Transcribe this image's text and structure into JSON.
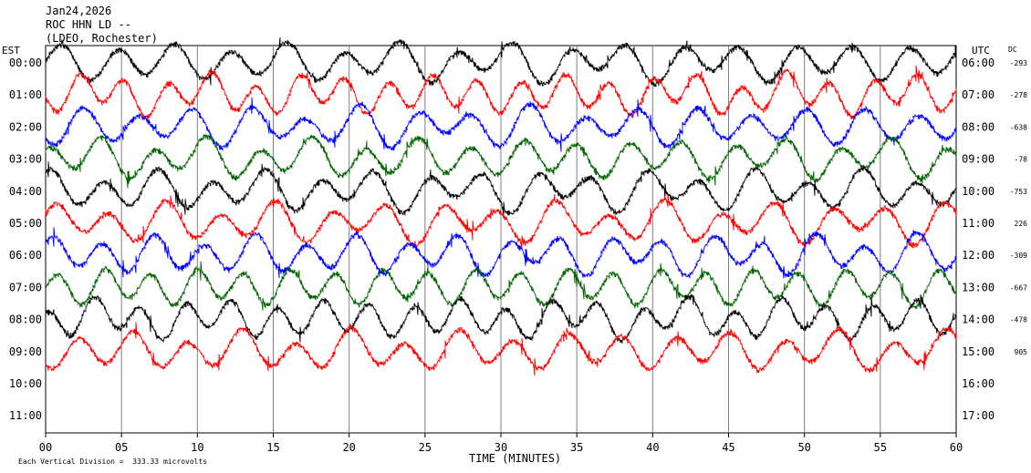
{
  "header": {
    "date": "Jan24,2026",
    "station_line": "ROC HHN LD --",
    "location_line": "(LDEO, Rochester)"
  },
  "axes": {
    "left_timezone": "EST",
    "right_timezone": "UTC",
    "dc_label": "DC",
    "x_title": "TIME (MINUTES)",
    "footer_note": "Each Vertical Division =  333.33 microvolts"
  },
  "chart_data": {
    "type": "line",
    "title": "Jan24,2026",
    "xlabel": "TIME (MINUTES)",
    "ylabel": "",
    "xlim": [
      0,
      60
    ],
    "x_ticks": [
      "00",
      "05",
      "10",
      "15",
      "20",
      "25",
      "30",
      "35",
      "40",
      "45",
      "50",
      "55",
      "60"
    ],
    "grid": true,
    "rows": [
      {
        "est": "00:00",
        "utc": "06:00",
        "dc": "-293",
        "color": "#000000"
      },
      {
        "est": "01:00",
        "utc": "07:00",
        "dc": "-278",
        "color": "#ff0000"
      },
      {
        "est": "02:00",
        "utc": "08:00",
        "dc": "-638",
        "color": "#0000ff"
      },
      {
        "est": "03:00",
        "utc": "09:00",
        "dc": "-78",
        "color": "#006400"
      },
      {
        "est": "04:00",
        "utc": "10:00",
        "dc": "-753",
        "color": "#000000"
      },
      {
        "est": "05:00",
        "utc": "11:00",
        "dc": "226",
        "color": "#ff0000"
      },
      {
        "est": "06:00",
        "utc": "12:00",
        "dc": "-309",
        "color": "#0000ff"
      },
      {
        "est": "07:00",
        "utc": "13:00",
        "dc": "-667",
        "color": "#006400"
      },
      {
        "est": "08:00",
        "utc": "14:00",
        "dc": "-478",
        "color": "#000000"
      },
      {
        "est": "09:00",
        "utc": "15:00",
        "dc": "905",
        "color": "#ff0000"
      },
      {
        "est": "10:00",
        "utc": "16:00",
        "dc": "",
        "color": ""
      },
      {
        "est": "11:00",
        "utc": "17:00",
        "dc": "",
        "color": ""
      }
    ]
  }
}
